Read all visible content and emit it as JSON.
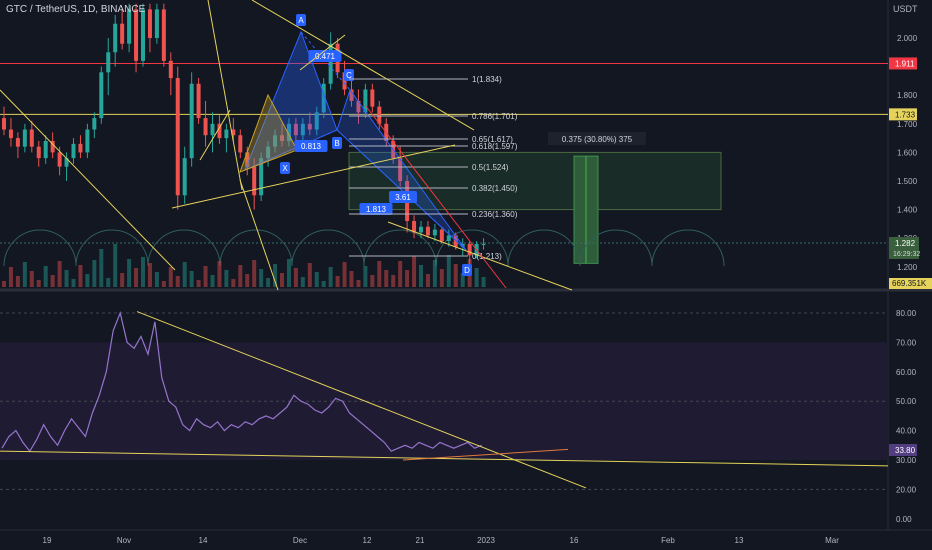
{
  "header": {
    "symbol_title": "GTC / TetherUS, 1D, BINANCE",
    "currency": "USDT"
  },
  "colors": {
    "background": "#131722",
    "up": "#26a69a",
    "down": "#ef5350",
    "rsi_line": "#9575cd",
    "rsi_band": "#1f1b33",
    "trendline": "#e5d35b",
    "red_level": "#f23645",
    "pattern": "#2962ff",
    "fib_line": "#b2b5be",
    "target_box": "#1e3b2c",
    "price_tag": "#3a5f3c"
  },
  "price_axis": {
    "ticks": [
      "2.000",
      "1.800",
      "1.700",
      "1.600",
      "1.500",
      "1.400",
      "1.300",
      "1.200"
    ],
    "tags": {
      "red": "1.911",
      "yellow": "1.733",
      "current": "1.282",
      "countdown": "16:29:32",
      "volume": "669.351K"
    }
  },
  "rsi_axis": {
    "ticks": [
      "80.00",
      "70.00",
      "60.00",
      "50.00",
      "40.00",
      "30.00",
      "20.00",
      "0.00"
    ],
    "value_tag": "33.80"
  },
  "time_axis": {
    "labels": [
      "19",
      "Nov",
      "14",
      "Dec",
      "12",
      "21",
      "2023",
      "16",
      "Feb",
      "13",
      "Mar"
    ]
  },
  "fib_levels": [
    "1(1.834)",
    "0.786(1.701)",
    "0.65(1.617)",
    "0.618(1.597)",
    "0.5(1.524)",
    "0.382(1.450)",
    "0.236(1.360)",
    "0(1.213)"
  ],
  "pattern": {
    "points": [
      "X",
      "A",
      "B",
      "C",
      "D"
    ],
    "ratios": [
      "0.471",
      "0.813",
      "1.813",
      "3.61"
    ]
  },
  "measure_label": "0.375 (30.80%) 375",
  "chart_data": [
    {
      "type": "candlestick",
      "title": "GTC / TetherUS, 1D, BINANCE",
      "ylabel": "USDT",
      "ylim": [
        1.16,
        2.12
      ],
      "x_labels": [
        "19",
        "Nov",
        "14",
        "Dec",
        "12",
        "21",
        "2023"
      ],
      "series": [
        {
          "name": "GTC / TetherUS",
          "values": [
            [
              1.72,
              1.76,
              1.66,
              1.68
            ],
            [
              1.68,
              1.72,
              1.62,
              1.65
            ],
            [
              1.65,
              1.67,
              1.58,
              1.62
            ],
            [
              1.62,
              1.7,
              1.6,
              1.68
            ],
            [
              1.68,
              1.71,
              1.6,
              1.62
            ],
            [
              1.62,
              1.64,
              1.55,
              1.58
            ],
            [
              1.58,
              1.66,
              1.56,
              1.64
            ],
            [
              1.64,
              1.67,
              1.58,
              1.6
            ],
            [
              1.6,
              1.62,
              1.52,
              1.55
            ],
            [
              1.55,
              1.6,
              1.5,
              1.58
            ],
            [
              1.58,
              1.65,
              1.56,
              1.63
            ],
            [
              1.63,
              1.66,
              1.58,
              1.6
            ],
            [
              1.6,
              1.7,
              1.58,
              1.68
            ],
            [
              1.68,
              1.74,
              1.65,
              1.72
            ],
            [
              1.72,
              1.9,
              1.7,
              1.88
            ],
            [
              1.88,
              2.0,
              1.8,
              1.95
            ],
            [
              1.95,
              2.08,
              1.9,
              2.05
            ],
            [
              2.05,
              2.1,
              1.96,
              1.98
            ],
            [
              1.98,
              2.12,
              1.95,
              2.1
            ],
            [
              2.1,
              2.12,
              1.88,
              1.92
            ],
            [
              1.92,
              2.12,
              1.9,
              2.1
            ],
            [
              2.1,
              2.12,
              1.95,
              2.0
            ],
            [
              2.0,
              2.12,
              1.98,
              2.1
            ],
            [
              2.1,
              2.12,
              1.9,
              1.92
            ],
            [
              1.92,
              1.95,
              1.8,
              1.86
            ],
            [
              1.86,
              1.9,
              1.4,
              1.45
            ],
            [
              1.45,
              1.62,
              1.42,
              1.58
            ],
            [
              1.58,
              1.88,
              1.55,
              1.84
            ],
            [
              1.84,
              1.86,
              1.7,
              1.72
            ],
            [
              1.72,
              1.78,
              1.62,
              1.66
            ],
            [
              1.66,
              1.74,
              1.6,
              1.7
            ],
            [
              1.7,
              1.73,
              1.63,
              1.65
            ],
            [
              1.65,
              1.7,
              1.6,
              1.68
            ],
            [
              1.68,
              1.72,
              1.64,
              1.66
            ],
            [
              1.66,
              1.68,
              1.58,
              1.6
            ],
            [
              1.6,
              1.62,
              1.52,
              1.55
            ],
            [
              1.55,
              1.58,
              1.4,
              1.45
            ],
            [
              1.45,
              1.6,
              1.43,
              1.58
            ],
            [
              1.58,
              1.64,
              1.55,
              1.62
            ],
            [
              1.62,
              1.68,
              1.6,
              1.66
            ],
            [
              1.66,
              1.7,
              1.62,
              1.64
            ],
            [
              1.64,
              1.72,
              1.62,
              1.7
            ],
            [
              1.7,
              1.72,
              1.64,
              1.66
            ],
            [
              1.66,
              1.72,
              1.64,
              1.7
            ],
            [
              1.7,
              1.74,
              1.66,
              1.68
            ],
            [
              1.68,
              1.76,
              1.66,
              1.74
            ],
            [
              1.74,
              1.86,
              1.72,
              1.84
            ],
            [
              1.84,
              2.02,
              1.82,
              1.98
            ],
            [
              1.98,
              2.0,
              1.86,
              1.88
            ],
            [
              1.88,
              1.92,
              1.8,
              1.82
            ],
            [
              1.82,
              1.86,
              1.76,
              1.78
            ],
            [
              1.78,
              1.82,
              1.7,
              1.74
            ],
            [
              1.74,
              1.84,
              1.72,
              1.82
            ],
            [
              1.82,
              1.84,
              1.74,
              1.76
            ],
            [
              1.76,
              1.78,
              1.68,
              1.7
            ],
            [
              1.7,
              1.72,
              1.62,
              1.64
            ],
            [
              1.64,
              1.66,
              1.56,
              1.58
            ],
            [
              1.58,
              1.62,
              1.48,
              1.5
            ],
            [
              1.5,
              1.52,
              1.32,
              1.36
            ],
            [
              1.36,
              1.38,
              1.3,
              1.32
            ],
            [
              1.32,
              1.36,
              1.3,
              1.34
            ],
            [
              1.34,
              1.36,
              1.3,
              1.31
            ],
            [
              1.31,
              1.35,
              1.29,
              1.33
            ],
            [
              1.33,
              1.34,
              1.28,
              1.29
            ],
            [
              1.29,
              1.33,
              1.27,
              1.31
            ],
            [
              1.31,
              1.32,
              1.26,
              1.27
            ],
            [
              1.27,
              1.3,
              1.24,
              1.28
            ],
            [
              1.28,
              1.29,
              1.21,
              1.24
            ],
            [
              1.24,
              1.29,
              1.23,
              1.28
            ],
            [
              1.28,
              1.3,
              1.26,
              1.28
            ]
          ]
        }
      ]
    },
    {
      "type": "line",
      "title": "RSI",
      "ylim": [
        0,
        85
      ],
      "y_ticks": [
        80,
        70,
        60,
        50,
        40,
        30,
        20,
        0
      ],
      "series": [
        {
          "name": "RSI",
          "values": [
            34,
            38,
            40,
            36,
            33,
            37,
            42,
            38,
            35,
            40,
            44,
            41,
            38,
            46,
            52,
            60,
            74,
            80,
            70,
            68,
            72,
            66,
            77,
            58,
            50,
            48,
            42,
            40,
            44,
            42,
            41,
            43,
            40,
            42,
            41,
            43,
            42,
            44,
            45,
            44,
            46,
            48,
            52,
            50,
            49,
            47,
            46,
            48,
            51,
            50,
            46,
            44,
            42,
            40,
            38,
            36,
            33,
            34,
            35,
            34,
            36,
            35,
            34,
            36,
            35,
            34,
            35,
            36,
            34,
            35
          ]
        }
      ]
    }
  ]
}
